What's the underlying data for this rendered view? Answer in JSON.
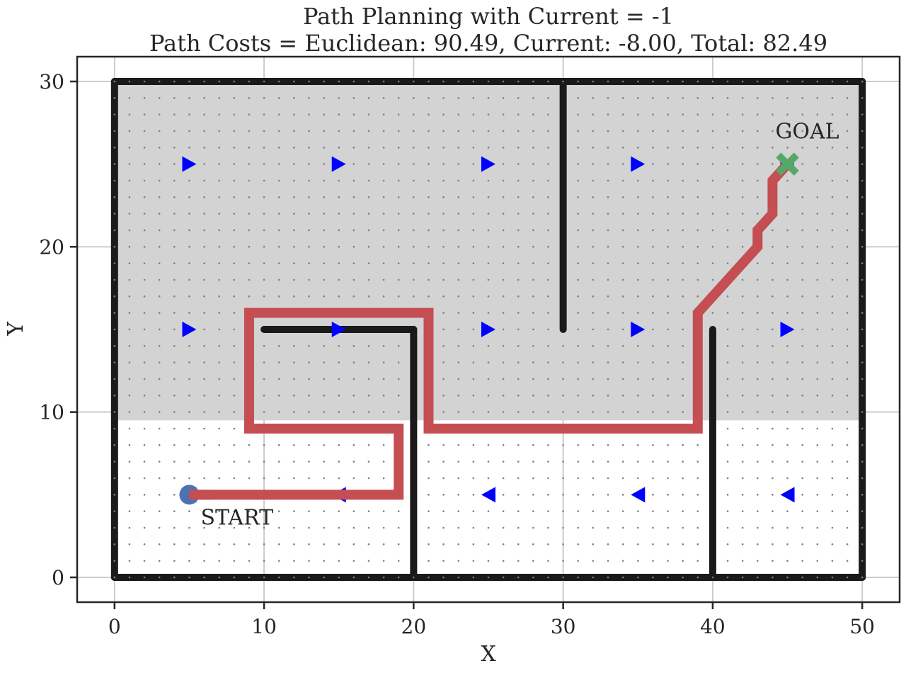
{
  "chart_data": {
    "type": "line",
    "title": "Path Planning with Current = -1",
    "subtitle": "Path Costs = Euclidean: 90.49, Current: -8.00, Total: 82.49",
    "xlabel": "X",
    "ylabel": "Y",
    "xlim": [
      -2.5,
      52.5
    ],
    "ylim": [
      -1.5,
      31.5
    ],
    "xticks": [
      0,
      10,
      20,
      30,
      40,
      50
    ],
    "yticks": [
      0,
      10,
      20,
      30
    ],
    "grid": true,
    "current_region": {
      "x": [
        0,
        50
      ],
      "y": [
        9.5,
        30
      ],
      "color": "#d3d3d3"
    },
    "walls": [
      [
        [
          0,
          0
        ],
        [
          50,
          0
        ]
      ],
      [
        [
          50,
          0
        ],
        [
          50,
          30
        ]
      ],
      [
        [
          50,
          30
        ],
        [
          0,
          30
        ]
      ],
      [
        [
          0,
          30
        ],
        [
          0,
          0
        ]
      ],
      [
        [
          20,
          0
        ],
        [
          20,
          15
        ]
      ],
      [
        [
          20,
          15
        ],
        [
          10,
          15
        ]
      ],
      [
        [
          30,
          30
        ],
        [
          30,
          15
        ]
      ],
      [
        [
          40,
          0
        ],
        [
          40,
          15
        ]
      ]
    ],
    "wall_color": "#1a1a1a",
    "current_arrows": [
      {
        "x": 5,
        "y": 25,
        "dir": "right"
      },
      {
        "x": 15,
        "y": 25,
        "dir": "right"
      },
      {
        "x": 25,
        "y": 25,
        "dir": "right"
      },
      {
        "x": 35,
        "y": 25,
        "dir": "right"
      },
      {
        "x": 45,
        "y": 25,
        "dir": "right"
      },
      {
        "x": 5,
        "y": 15,
        "dir": "right"
      },
      {
        "x": 15,
        "y": 15,
        "dir": "right"
      },
      {
        "x": 25,
        "y": 15,
        "dir": "right"
      },
      {
        "x": 35,
        "y": 15,
        "dir": "right"
      },
      {
        "x": 45,
        "y": 15,
        "dir": "right"
      },
      {
        "x": 5,
        "y": 5,
        "dir": "left"
      },
      {
        "x": 15,
        "y": 5,
        "dir": "left"
      },
      {
        "x": 25,
        "y": 5,
        "dir": "left"
      },
      {
        "x": 35,
        "y": 5,
        "dir": "left"
      },
      {
        "x": 45,
        "y": 5,
        "dir": "left"
      }
    ],
    "arrow_color": "#0000ff",
    "series": [
      {
        "color": "#c44e52",
        "x": [
          5,
          19,
          19,
          9,
          9,
          21,
          21,
          39,
          39,
          43,
          43,
          44,
          44,
          45
        ],
        "y": [
          5,
          5,
          9,
          9,
          16,
          16,
          9,
          9,
          16,
          20,
          21,
          22,
          24,
          25
        ]
      }
    ],
    "start": {
      "x": 5,
      "y": 5,
      "label": "START",
      "color": "#4c72b0"
    },
    "goal": {
      "x": 45,
      "y": 25,
      "label": "GOAL",
      "color": "#55a868"
    }
  }
}
